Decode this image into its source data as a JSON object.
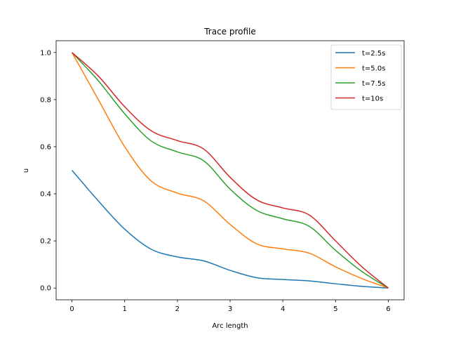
{
  "chart_data": {
    "type": "line",
    "title": "Trace profile",
    "xlabel": "Arc length",
    "ylabel": "u",
    "xlim": [
      -0.3,
      6.3
    ],
    "ylim": [
      -0.05,
      1.05
    ],
    "xticks": [
      0,
      1,
      2,
      3,
      4,
      5,
      6
    ],
    "yticks": [
      0.0,
      0.2,
      0.4,
      0.6,
      0.8,
      1.0
    ],
    "xtick_labels": [
      "0",
      "1",
      "2",
      "3",
      "4",
      "5",
      "6"
    ],
    "ytick_labels": [
      "0.0",
      "0.2",
      "0.4",
      "0.6",
      "0.8",
      "1.0"
    ],
    "grid": false,
    "legend_position": "top-right",
    "x": [
      0,
      0.5,
      1.0,
      1.5,
      2.0,
      2.5,
      3.0,
      3.5,
      4.0,
      4.5,
      5.0,
      5.5,
      6.0
    ],
    "series": [
      {
        "name": "t=2.5s",
        "color": "#1f77b4",
        "values": [
          0.5,
          0.37,
          0.25,
          0.165,
          0.132,
          0.115,
          0.075,
          0.044,
          0.036,
          0.03,
          0.018,
          0.007,
          0.0
        ]
      },
      {
        "name": "t=5.0s",
        "color": "#ff7f0e",
        "values": [
          1.0,
          0.8,
          0.6,
          0.455,
          0.403,
          0.37,
          0.27,
          0.188,
          0.166,
          0.148,
          0.09,
          0.04,
          0.0
        ]
      },
      {
        "name": "t=7.5s",
        "color": "#2ca02c",
        "values": [
          1.0,
          0.88,
          0.74,
          0.625,
          0.578,
          0.54,
          0.42,
          0.33,
          0.294,
          0.262,
          0.16,
          0.07,
          0.0
        ]
      },
      {
        "name": "t=10s",
        "color": "#d62728",
        "values": [
          1.0,
          0.9,
          0.77,
          0.668,
          0.626,
          0.59,
          0.47,
          0.375,
          0.34,
          0.31,
          0.2,
          0.09,
          0.0
        ]
      }
    ]
  }
}
